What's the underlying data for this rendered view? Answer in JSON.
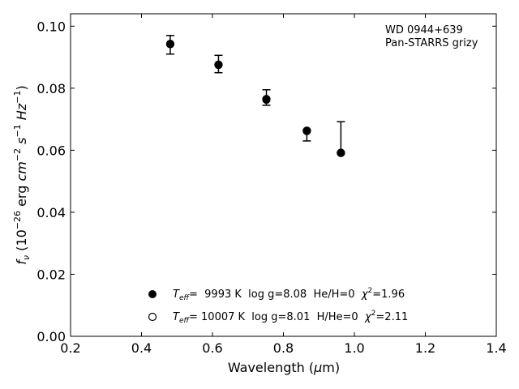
{
  "chart_data": {
    "type": "scatter",
    "annotation": [
      "WD 0944+639",
      "Pan-STARRS grizy"
    ],
    "xlabel": {
      "text": "Wavelength (",
      "symbol": "μ",
      "rest": "m)"
    },
    "ylabel": {
      "f": "f",
      "nu": "ν",
      "pre": " (10",
      "e1": "−26",
      "mid": " erg ",
      "cm": "cm",
      "e2": "−2",
      "s": "s",
      "e3": "−1",
      "hz": "Hz",
      "e4": "−1",
      "close": ")"
    },
    "xlim": [
      0.2,
      1.4
    ],
    "ylim": [
      0.0,
      0.104
    ],
    "xticks": [
      0.2,
      0.4,
      0.6,
      0.8,
      1.0,
      1.2,
      1.4
    ],
    "xtick_labels": [
      "0.2",
      "0.4",
      "0.6",
      "0.8",
      "1.0",
      "1.2",
      "1.4"
    ],
    "yticks": [
      0.0,
      0.02,
      0.04,
      0.06,
      0.08,
      0.1
    ],
    "ytick_labels": [
      "0.00",
      "0.02",
      "0.04",
      "0.06",
      "0.08",
      "0.10"
    ],
    "grid": false,
    "legend_placement": "lower-center",
    "observed": {
      "x": [
        0.481,
        0.617,
        0.752,
        0.866,
        0.962
      ],
      "y": [
        0.094,
        0.0878,
        0.077,
        0.0653,
        0.0642
      ],
      "yerr_low": [
        0.003,
        0.0028,
        0.0025,
        0.0023,
        0.005
      ],
      "yerr_high": [
        0.003,
        0.0028,
        0.0025,
        0.0012,
        0.005
      ]
    },
    "series": [
      {
        "marker": "filled-circle",
        "legend": {
          "T": "T",
          "sub": "eff",
          "rest": "=  9993 K  log g=8.08  He/H=0  ",
          "chi": "χ",
          "sup": "2",
          "end": "=1.96"
        },
        "x": [
          0.481,
          0.617,
          0.752,
          0.866,
          0.962
        ],
        "y": [
          0.0942,
          0.0875,
          0.0763,
          0.0663,
          0.0591
        ]
      },
      {
        "marker": "open-circle",
        "legend": {
          "T": "T",
          "sub": "eff",
          "rest": "= 10007 K  log g=8.01  H/He=0  ",
          "chi": "χ",
          "sup": "2",
          "end": "=2.11"
        },
        "x": [
          0.481,
          0.617,
          0.752,
          0.866,
          0.962
        ],
        "y": [
          0.0943,
          0.0876,
          0.0765,
          0.0662,
          0.0592
        ]
      }
    ],
    "colors": {
      "marker": "#000000",
      "axes": "#000000",
      "background": "#ffffff"
    }
  }
}
